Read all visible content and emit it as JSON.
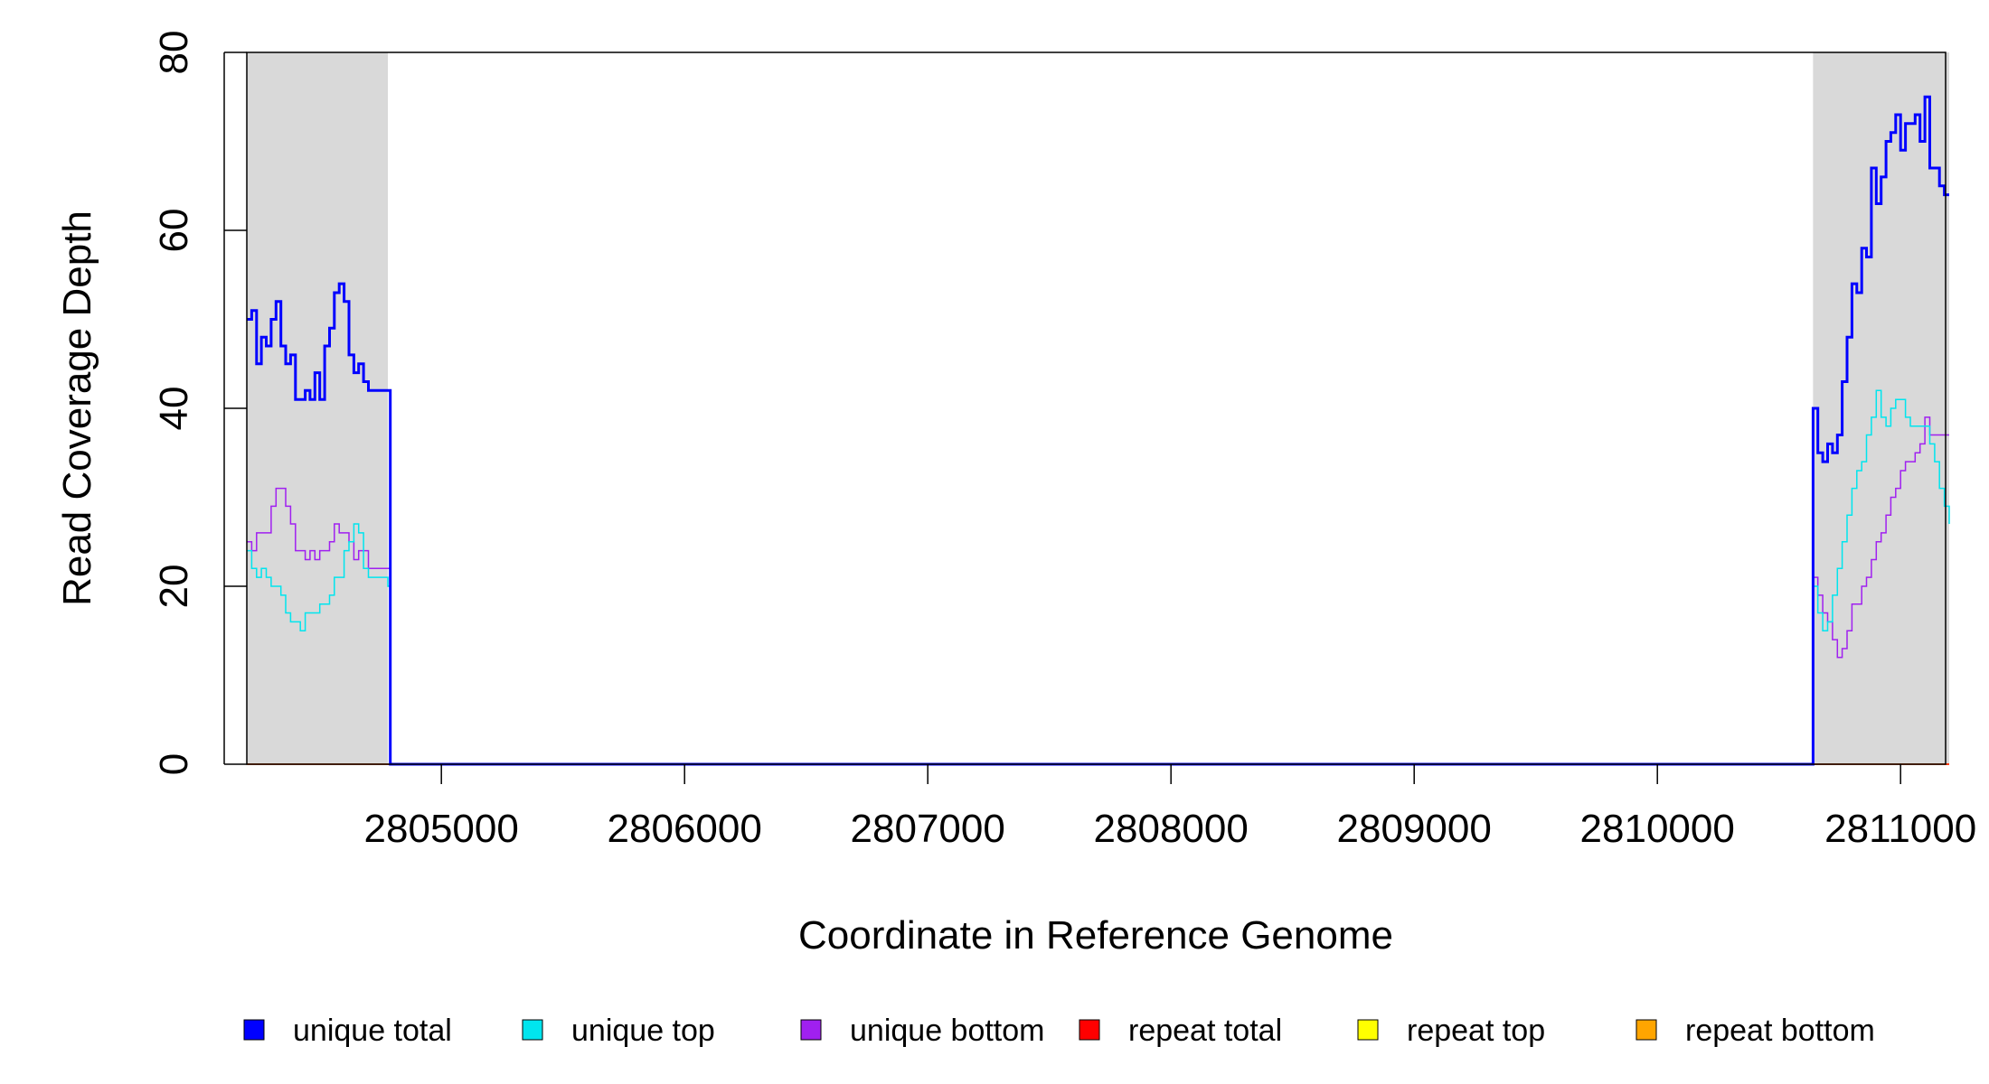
{
  "chart_data": {
    "type": "line",
    "title": "",
    "xlabel": "Coordinate in Reference Genome",
    "ylabel": "Read Coverage Depth",
    "xlim": [
      2804200,
      2811200
    ],
    "ylim": [
      0,
      80
    ],
    "x_ticks": [
      2805000,
      2806000,
      2807000,
      2808000,
      2809000,
      2810000,
      2811000
    ],
    "y_ticks": [
      0,
      20,
      40,
      60,
      80
    ],
    "grid": false,
    "legend_placement": "bottom",
    "shaded_regions": [
      {
        "x_start": 2804200,
        "x_end": 2804780,
        "color": "#d9d9d9"
      },
      {
        "x_start": 2810640,
        "x_end": 2811200,
        "color": "#d9d9d9"
      }
    ],
    "series": [
      {
        "name": "unique total",
        "color": "#0000ff",
        "stroke_width": 3,
        "x": [
          2804200,
          2804220,
          2804240,
          2804260,
          2804280,
          2804300,
          2804320,
          2804340,
          2804360,
          2804380,
          2804400,
          2804420,
          2804440,
          2804460,
          2804480,
          2804500,
          2804520,
          2804540,
          2804560,
          2804580,
          2804600,
          2804620,
          2804640,
          2804660,
          2804680,
          2804700,
          2804720,
          2804740,
          2804760,
          2804780,
          2804790,
          2810630,
          2810640,
          2810660,
          2810680,
          2810700,
          2810720,
          2810740,
          2810760,
          2810780,
          2810800,
          2810820,
          2810840,
          2810860,
          2810880,
          2810900,
          2810920,
          2810940,
          2810960,
          2810980,
          2811000,
          2811020,
          2811040,
          2811060,
          2811080,
          2811100,
          2811120,
          2811140,
          2811160,
          2811180,
          2811200
        ],
        "y": [
          50,
          51,
          45,
          48,
          47,
          50,
          52,
          47,
          45,
          46,
          41,
          41,
          42,
          41,
          44,
          41,
          47,
          49,
          53,
          54,
          52,
          46,
          44,
          45,
          43,
          42,
          42,
          42,
          42,
          42,
          0,
          0,
          40,
          35,
          34,
          36,
          35,
          37,
          43,
          48,
          54,
          53,
          58,
          57,
          67,
          63,
          66,
          70,
          71,
          73,
          69,
          72,
          72,
          73,
          70,
          75,
          67,
          67,
          65,
          64,
          64
        ]
      },
      {
        "name": "unique top",
        "color": "#00e5ee",
        "stroke_width": 1.5,
        "x": [
          2804200,
          2804220,
          2804240,
          2804260,
          2804280,
          2804300,
          2804320,
          2804340,
          2804360,
          2804380,
          2804400,
          2804420,
          2804440,
          2804460,
          2804480,
          2804500,
          2804520,
          2804540,
          2804560,
          2804580,
          2804600,
          2804620,
          2804640,
          2804660,
          2804680,
          2804700,
          2804720,
          2804740,
          2804760,
          2804780,
          2804790,
          2810630,
          2810640,
          2810660,
          2810680,
          2810700,
          2810720,
          2810740,
          2810760,
          2810780,
          2810800,
          2810820,
          2810840,
          2810860,
          2810880,
          2810900,
          2810920,
          2810940,
          2810960,
          2810980,
          2811000,
          2811020,
          2811040,
          2811060,
          2811080,
          2811100,
          2811120,
          2811140,
          2811160,
          2811180,
          2811200
        ],
        "y": [
          24,
          22,
          21,
          22,
          21,
          20,
          20,
          19,
          17,
          16,
          16,
          15,
          17,
          17,
          17,
          18,
          18,
          19,
          21,
          21,
          24,
          25,
          27,
          26,
          22,
          21,
          21,
          21,
          21,
          20,
          0,
          0,
          20,
          17,
          15,
          16,
          19,
          22,
          25,
          28,
          31,
          33,
          34,
          37,
          39,
          42,
          39,
          38,
          40,
          41,
          41,
          39,
          38,
          38,
          38,
          38,
          36,
          34,
          31,
          29,
          27
        ]
      },
      {
        "name": "unique bottom",
        "color": "#a020f0",
        "stroke_width": 1.5,
        "x": [
          2804200,
          2804220,
          2804240,
          2804260,
          2804280,
          2804300,
          2804320,
          2804340,
          2804360,
          2804380,
          2804400,
          2804420,
          2804440,
          2804460,
          2804480,
          2804500,
          2804520,
          2804540,
          2804560,
          2804580,
          2804600,
          2804620,
          2804640,
          2804660,
          2804680,
          2804700,
          2804720,
          2804740,
          2804760,
          2804780,
          2804790,
          2810630,
          2810640,
          2810660,
          2810680,
          2810700,
          2810720,
          2810740,
          2810760,
          2810780,
          2810800,
          2810820,
          2810840,
          2810860,
          2810880,
          2810900,
          2810920,
          2810940,
          2810960,
          2810980,
          2811000,
          2811020,
          2811040,
          2811060,
          2811080,
          2811100,
          2811120,
          2811140,
          2811160,
          2811180,
          2811200
        ],
        "y": [
          25,
          24,
          26,
          26,
          26,
          29,
          31,
          31,
          29,
          27,
          24,
          24,
          23,
          24,
          23,
          24,
          24,
          25,
          27,
          26,
          26,
          25,
          23,
          24,
          24,
          22,
          22,
          22,
          22,
          22,
          0,
          0,
          21,
          19,
          17,
          16,
          14,
          12,
          13,
          15,
          18,
          18,
          20,
          21,
          23,
          25,
          26,
          28,
          30,
          31,
          33,
          34,
          34,
          35,
          36,
          39,
          37,
          37,
          37,
          37,
          37
        ]
      },
      {
        "name": "repeat total",
        "color": "#ff0000",
        "stroke_width": 1.5,
        "x": [
          2804200,
          2811200
        ],
        "y": [
          0,
          0
        ]
      },
      {
        "name": "repeat top",
        "color": "#ffff00",
        "stroke_width": 1.5,
        "x": [
          2804200,
          2811200
        ],
        "y": [
          0,
          0
        ]
      },
      {
        "name": "repeat bottom",
        "color": "#ffa500",
        "stroke_width": 1.5,
        "x": [
          2804200,
          2811200
        ],
        "y": [
          0,
          0
        ]
      }
    ]
  }
}
